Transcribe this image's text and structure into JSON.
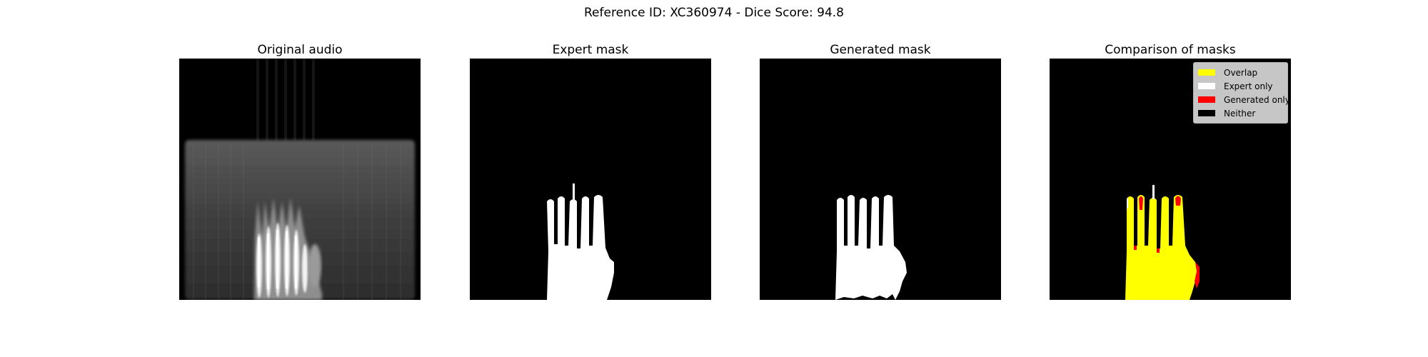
{
  "suptitle": "Reference ID: XC360974 - Dice Score: 94.8",
  "panels": [
    {
      "title": "Original audio"
    },
    {
      "title": "Expert mask"
    },
    {
      "title": "Generated mask"
    },
    {
      "title": "Comparison of masks"
    }
  ],
  "legend": {
    "items": [
      {
        "label": "Overlap",
        "color": "#ffff00"
      },
      {
        "label": "Expert only",
        "color": "#ffffff"
      },
      {
        "label": "Generated only",
        "color": "#ff0000"
      },
      {
        "label": "Neither",
        "color": "#000000"
      }
    ]
  }
}
